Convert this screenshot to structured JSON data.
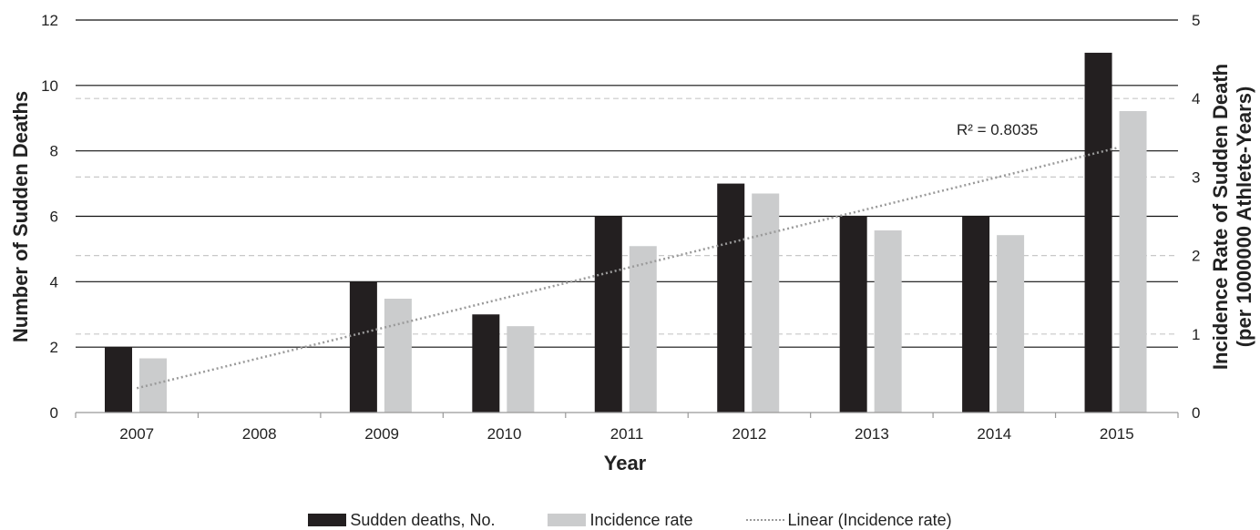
{
  "chart_data": {
    "type": "bar",
    "categories": [
      "2007",
      "2008",
      "2009",
      "2010",
      "2011",
      "2012",
      "2013",
      "2014",
      "2015"
    ],
    "series": [
      {
        "name": "Sudden deaths, No.",
        "axis": "left",
        "color": "#231f20",
        "values": [
          2,
          0,
          4,
          3,
          6,
          7,
          6,
          6,
          11
        ]
      },
      {
        "name": "Incidence rate",
        "axis": "right",
        "color": "#cbcccd",
        "values": [
          0.69,
          0,
          1.45,
          1.1,
          2.12,
          2.79,
          2.32,
          2.26,
          3.84
        ]
      }
    ],
    "trendline": {
      "name": "Linear (Incidence rate)",
      "type": "linear",
      "of_series": "Incidence rate",
      "start_value": 0.31,
      "end_value": 3.37,
      "color": "#9a9a9a",
      "r_squared_label": "R² = 0.8035"
    },
    "xlabel": "Year",
    "ylabel": "Number of Sudden Deaths",
    "ylabel_right_line1": "Incidence Rate of Sudden Death",
    "ylabel_right_line2": "(per 1000000 Athlete-Years)",
    "ylim": [
      0,
      12
    ],
    "ylim_right": [
      0,
      5
    ],
    "yticks": [
      0,
      2,
      4,
      6,
      8,
      10,
      12
    ],
    "yticks_right": [
      0,
      1,
      2,
      3,
      4,
      5
    ],
    "grid": "left-axis solid, right-axis dashed",
    "legend_position": "bottom"
  }
}
